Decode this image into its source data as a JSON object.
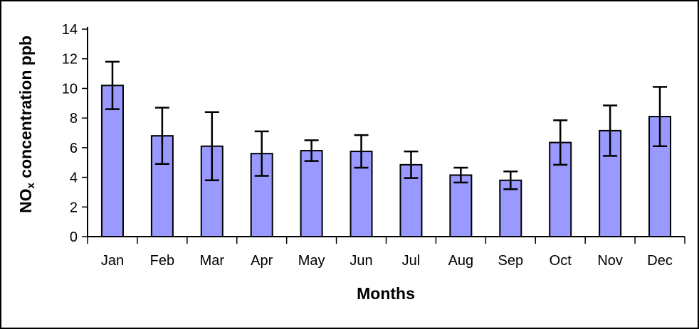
{
  "chart_data": {
    "type": "bar",
    "title": "",
    "xlabel": "Months",
    "ylabel": "NOx concentration ppb",
    "ylabel_parts": {
      "pre": "NO",
      "sub": "x",
      "post": " concentration ppb"
    },
    "categories": [
      "Jan",
      "Feb",
      "Mar",
      "Apr",
      "May",
      "Jun",
      "Jul",
      "Aug",
      "Sep",
      "Oct",
      "Nov",
      "Dec"
    ],
    "values": [
      10.2,
      6.8,
      6.1,
      5.6,
      5.8,
      5.75,
      4.85,
      4.15,
      3.8,
      6.35,
      7.15,
      8.1
    ],
    "error_bars": [
      1.6,
      1.9,
      2.3,
      1.5,
      0.7,
      1.1,
      0.9,
      0.5,
      0.6,
      1.5,
      1.7,
      2.0
    ],
    "ylim": [
      0,
      14
    ],
    "yticks": [
      0,
      2,
      4,
      6,
      8,
      10,
      12,
      14
    ],
    "bar_color": "#9999FF",
    "bar_border_color": "#000000",
    "error_bar_color": "#000000",
    "axis_color": "#000000",
    "background_color": "#FFFFFF",
    "grid": false,
    "legend": false,
    "error_bar_style": "symmetric-with-caps"
  }
}
